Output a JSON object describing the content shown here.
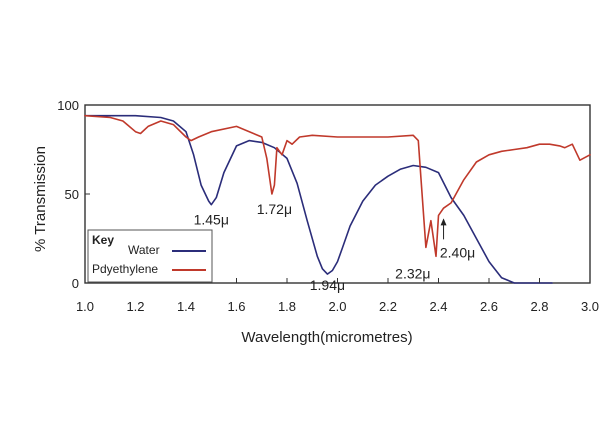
{
  "chart_data": {
    "type": "line",
    "xlabel": "Wavelength(micrometres)",
    "ylabel": "% Transmission",
    "xlim": [
      1.0,
      3.0
    ],
    "ylim": [
      0,
      100
    ],
    "x_ticks": [
      "1.0",
      "1.2",
      "1.4",
      "1.6",
      "1.8",
      "2.0",
      "2.2",
      "2.4",
      "2.6",
      "2.8",
      "3.0"
    ],
    "y_ticks": [
      "0",
      "50",
      "100"
    ],
    "grid": false,
    "legend_position": "bottom-left",
    "legend_title": "Key",
    "series": [
      {
        "name": "Water",
        "color": "#2b2d7a",
        "x": [
          1.0,
          1.1,
          1.2,
          1.3,
          1.35,
          1.4,
          1.43,
          1.46,
          1.49,
          1.5,
          1.52,
          1.55,
          1.6,
          1.65,
          1.7,
          1.75,
          1.8,
          1.84,
          1.88,
          1.92,
          1.94,
          1.96,
          1.98,
          2.0,
          2.02,
          2.05,
          2.1,
          2.15,
          2.2,
          2.25,
          2.3,
          2.35,
          2.4,
          2.45,
          2.5,
          2.55,
          2.6,
          2.65,
          2.7,
          2.8,
          2.85
        ],
        "y": [
          94,
          94,
          94,
          93,
          91,
          85,
          72,
          55,
          46,
          44,
          48,
          62,
          77,
          80,
          79,
          76,
          70,
          56,
          35,
          15,
          8,
          5,
          7,
          12,
          20,
          32,
          46,
          55,
          60,
          64,
          66,
          65,
          62,
          48,
          38,
          25,
          12,
          3,
          0,
          0,
          0
        ]
      },
      {
        "name": "Pdyethylene",
        "color": "#c0392b",
        "x": [
          1.0,
          1.1,
          1.15,
          1.2,
          1.22,
          1.25,
          1.3,
          1.35,
          1.4,
          1.42,
          1.45,
          1.5,
          1.6,
          1.7,
          1.72,
          1.74,
          1.75,
          1.76,
          1.78,
          1.8,
          1.82,
          1.85,
          1.9,
          2.0,
          2.1,
          2.2,
          2.3,
          2.32,
          2.33,
          2.35,
          2.37,
          2.39,
          2.4,
          2.42,
          2.45,
          2.5,
          2.55,
          2.6,
          2.65,
          2.7,
          2.75,
          2.8,
          2.84,
          2.88,
          2.9,
          2.93,
          2.96,
          3.0
        ],
        "y": [
          94,
          93,
          91,
          85,
          84,
          88,
          91,
          89,
          82,
          80,
          82,
          85,
          88,
          82,
          70,
          50,
          55,
          76,
          72,
          80,
          78,
          82,
          83,
          82,
          82,
          82,
          83,
          80,
          60,
          20,
          35,
          15,
          38,
          42,
          45,
          58,
          68,
          72,
          74,
          75,
          76,
          78,
          78,
          77,
          76,
          78,
          69,
          72
        ]
      }
    ],
    "annotations": [
      {
        "text": "1.45μ",
        "x": 1.5,
        "y": 44
      },
      {
        "text": "1.72μ",
        "x": 1.75,
        "y": 50
      },
      {
        "text": "1.94μ",
        "x": 1.96,
        "y": 5
      },
      {
        "text": "2.32μ",
        "x": 2.33,
        "y": 15
      },
      {
        "text": "2.40μ",
        "x": 2.42,
        "y": 38
      }
    ]
  }
}
